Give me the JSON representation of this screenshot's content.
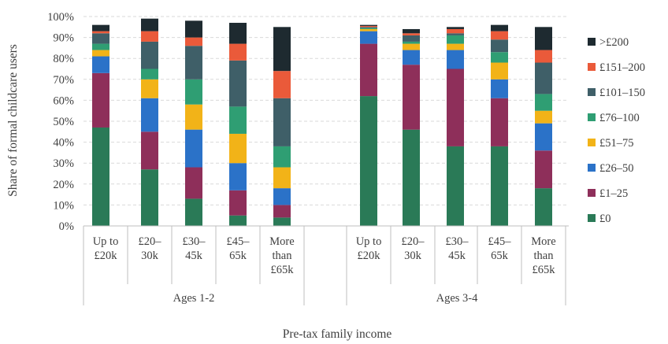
{
  "chart_data": {
    "type": "bar",
    "stacked": true,
    "ylabel": "Share of formal childcare users",
    "xlabel": "Pre-tax family income",
    "ylim": [
      0,
      100
    ],
    "yticks": [
      "0%",
      "10%",
      "20%",
      "30%",
      "40%",
      "50%",
      "60%",
      "70%",
      "80%",
      "90%",
      "100%"
    ],
    "grid": true,
    "legend_position": "right",
    "groups": [
      {
        "label": "Ages 1-2",
        "categories": [
          [
            "Up to",
            "£20k"
          ],
          [
            "£20–",
            "30k"
          ],
          [
            "£30–",
            "45k"
          ],
          [
            "£45–",
            "65k"
          ],
          [
            "More",
            "than",
            "£65k"
          ]
        ]
      },
      {
        "label": "Ages 3-4",
        "categories": [
          [
            "Up to",
            "£20k"
          ],
          [
            "£20–",
            "30k"
          ],
          [
            "£30–",
            "45k"
          ],
          [
            "£45–",
            "65k"
          ],
          [
            "More",
            "than",
            "£65k"
          ]
        ]
      }
    ],
    "series": [
      {
        "name": "£0",
        "color": "#2a7a57",
        "values": [
          47,
          27,
          13,
          5,
          4,
          62,
          46,
          38,
          38,
          18
        ]
      },
      {
        "name": "£1–25",
        "color": "#8e2f5a",
        "values": [
          26,
          18,
          15,
          12,
          6,
          25,
          31,
          37,
          23,
          18
        ]
      },
      {
        "name": "£26–50",
        "color": "#2b72c8",
        "values": [
          8,
          16,
          18,
          13,
          8,
          6,
          7,
          9,
          9,
          13
        ]
      },
      {
        "name": "£51–75",
        "color": "#f2b318",
        "values": [
          3,
          9,
          12,
          14,
          10,
          1,
          3,
          3,
          8,
          6
        ]
      },
      {
        "name": "£76–100",
        "color": "#2f9e73",
        "values": [
          3,
          5,
          12,
          13,
          10,
          0.5,
          1,
          4,
          5,
          8
        ]
      },
      {
        "name": "£101–150",
        "color": "#3f5f68",
        "values": [
          5,
          13,
          16,
          22,
          23,
          0.5,
          3,
          1,
          6,
          15
        ]
      },
      {
        "name": "£151–200",
        "color": "#ea5a3a",
        "values": [
          1,
          5,
          4,
          8,
          13,
          0.5,
          1,
          2,
          4,
          6
        ]
      },
      {
        "name": ">£200",
        "color": "#1e2a30",
        "values": [
          3,
          6,
          8,
          10,
          21,
          0.5,
          2,
          1,
          3,
          11
        ]
      }
    ]
  }
}
